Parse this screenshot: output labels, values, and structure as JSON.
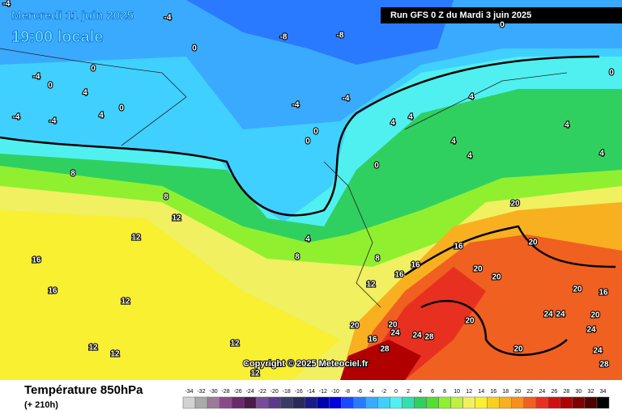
{
  "header": {
    "date": "Mercredi 11 juin 2025",
    "time": "19:00 locale",
    "run": "Run GFS 0 Z du Mardi 3 juin 2025"
  },
  "footer": {
    "title": "Température 850hPa",
    "lead": "(+ 210h)",
    "copyright": "Copyright © 2025 Meteociel.fr"
  },
  "scale": {
    "ticks": [
      -34,
      -32,
      -30,
      -28,
      -26,
      -24,
      -22,
      -20,
      -18,
      -16,
      -14,
      -12,
      -10,
      -8,
      -6,
      -4,
      -2,
      0,
      2,
      4,
      6,
      8,
      10,
      12,
      14,
      16,
      18,
      20,
      22,
      24,
      26,
      28,
      30,
      32,
      34
    ],
    "colors": [
      "#d2d2d2",
      "#aaaaaa",
      "#9a7a9a",
      "#8a4a8a",
      "#6a2a6a",
      "#4a1a4a",
      "#7a4a9a",
      "#5a3a8a",
      "#3a3a6a",
      "#2a2a5a",
      "#1a1a8a",
      "#0000aa",
      "#0000dd",
      "#1a4aff",
      "#2a7aff",
      "#3aaaff",
      "#40d0ff",
      "#50f0f0",
      "#30e0b0",
      "#30d060",
      "#50e030",
      "#90f030",
      "#c0f040",
      "#f0f060",
      "#f8f030",
      "#f8d020",
      "#f8b020",
      "#f89020",
      "#f06020",
      "#e83020",
      "#d01010",
      "#b00000",
      "#800000",
      "#500000",
      "#000000"
    ]
  },
  "contour_labels": [
    -4,
    -4,
    -8,
    -8,
    0,
    0,
    -4,
    0,
    4,
    0,
    -4,
    -4,
    4,
    -4,
    -4,
    0,
    0,
    4,
    4,
    4,
    4,
    4,
    0,
    8,
    8,
    12,
    12,
    16,
    16,
    12,
    4,
    8,
    8,
    12,
    16,
    16,
    16,
    20,
    20,
    20,
    20,
    20,
    16,
    24,
    24,
    20,
    20,
    24,
    20,
    20,
    24,
    24,
    28,
    16,
    28,
    20,
    24,
    28,
    12,
    12,
    12,
    12,
    0,
    0,
    4,
    4
  ]
}
